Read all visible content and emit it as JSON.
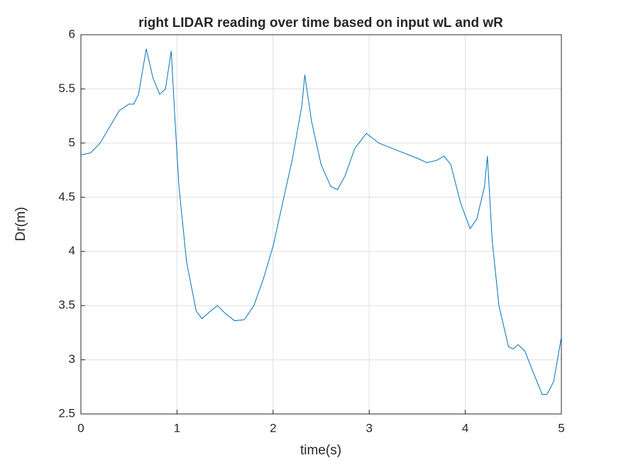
{
  "chart_data": {
    "type": "line",
    "title": "right LIDAR reading over time based on input wL and wR",
    "xlabel": "time(s)",
    "ylabel": "Dr(m)",
    "x": [
      0,
      0.1,
      0.2,
      0.3,
      0.4,
      0.5,
      0.55,
      0.6,
      0.68,
      0.75,
      0.82,
      0.88,
      0.94,
      0.98,
      1.02,
      1.1,
      1.2,
      1.26,
      1.35,
      1.42,
      1.5,
      1.6,
      1.7,
      1.8,
      1.9,
      2.0,
      2.1,
      2.2,
      2.3,
      2.33,
      2.4,
      2.5,
      2.6,
      2.67,
      2.75,
      2.85,
      2.97,
      3.1,
      3.3,
      3.5,
      3.6,
      3.7,
      3.78,
      3.85,
      3.95,
      4.05,
      4.12,
      4.2,
      4.23,
      4.28,
      4.35,
      4.45,
      4.5,
      4.55,
      4.62,
      4.7,
      4.8,
      4.85,
      4.92,
      5.0
    ],
    "series": [
      {
        "color": "#0072bd",
        "values": [
          4.89,
          4.91,
          5.0,
          5.15,
          5.3,
          5.36,
          5.36,
          5.45,
          5.87,
          5.6,
          5.45,
          5.5,
          5.85,
          5.2,
          4.6,
          3.9,
          3.45,
          3.38,
          3.45,
          3.5,
          3.43,
          3.36,
          3.37,
          3.5,
          3.75,
          4.05,
          4.45,
          4.85,
          5.35,
          5.63,
          5.2,
          4.8,
          4.6,
          4.57,
          4.7,
          4.95,
          5.09,
          5.0,
          4.93,
          4.86,
          4.82,
          4.84,
          4.88,
          4.8,
          4.45,
          4.21,
          4.3,
          4.6,
          4.88,
          4.1,
          3.5,
          3.12,
          3.1,
          3.14,
          3.08,
          2.9,
          2.68,
          2.68,
          2.8,
          3.21
        ]
      }
    ],
    "xlim": [
      0,
      5
    ],
    "xticks": [
      0,
      1,
      2,
      3,
      4,
      5
    ],
    "ylim": [
      2.5,
      6
    ],
    "yticks": [
      2.5,
      3,
      3.5,
      4,
      4.5,
      5,
      5.5,
      6
    ],
    "grid": true
  }
}
